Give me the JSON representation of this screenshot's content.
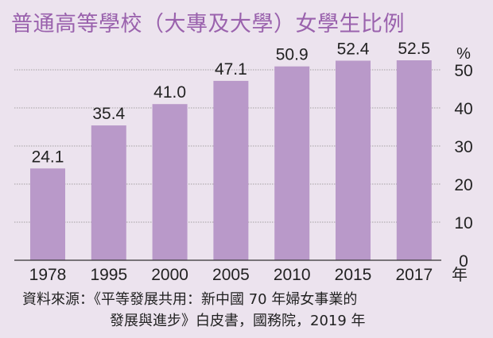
{
  "chart_data": {
    "type": "bar",
    "title": "普通高等學校（大專及大學）女學生比例",
    "categories": [
      "1978",
      "1995",
      "2000",
      "2005",
      "2010",
      "2015",
      "2017"
    ],
    "values": [
      24.1,
      35.4,
      41.0,
      47.1,
      50.9,
      52.4,
      52.5
    ],
    "value_labels": [
      "24.1",
      "35.4",
      "41.0",
      "47.1",
      "50.9",
      "52.4",
      "52.5"
    ],
    "ylim": [
      0,
      50
    ],
    "yticks": [
      0,
      10,
      20,
      30,
      40,
      50
    ],
    "y_unit": "%",
    "x_unit": "年",
    "grid": true,
    "bar_color": "#b999c9"
  },
  "source": {
    "line1": "資料來源：《平等發展共用：新中國 70 年婦女事業的",
    "line2": "發展與進步》白皮書，國務院，2019 年"
  }
}
